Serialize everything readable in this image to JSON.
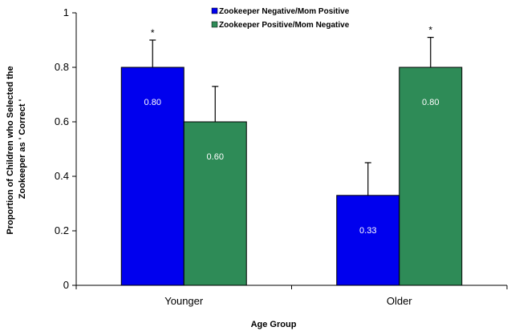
{
  "chart_data": {
    "type": "bar",
    "categories": [
      "Younger",
      "Older"
    ],
    "series": [
      {
        "name": "Zookeeper Negative/Mom Positive",
        "color": "#0000ee",
        "values": [
          0.8,
          0.33
        ],
        "error": [
          0.1,
          0.12
        ],
        "value_labels": [
          "0.80",
          "0.33"
        ],
        "annotations": [
          "*",
          ""
        ]
      },
      {
        "name": "Zookeeper Positive/Mom Negative",
        "color": "#2e8b57",
        "values": [
          0.6,
          0.8
        ],
        "error": [
          0.13,
          0.11
        ],
        "value_labels": [
          "0.60",
          "0.80"
        ],
        "annotations": [
          "",
          "*"
        ]
      }
    ],
    "xlabel": "Age Group",
    "ylabel_lines": [
      "Proportion of Children who Selected the",
      "Zookeeper as ' Correct '"
    ],
    "ylim": [
      0,
      1
    ],
    "yticks": [
      {
        "value": 0,
        "label": "0"
      },
      {
        "value": 0.2,
        "label": "0.2"
      },
      {
        "value": 0.4,
        "label": "0.4"
      },
      {
        "value": 0.6,
        "label": "0.6"
      },
      {
        "value": 0.8,
        "label": "0.8"
      },
      {
        "value": 1,
        "label": "1"
      }
    ],
    "grid": false,
    "legend_position": "top-center"
  }
}
